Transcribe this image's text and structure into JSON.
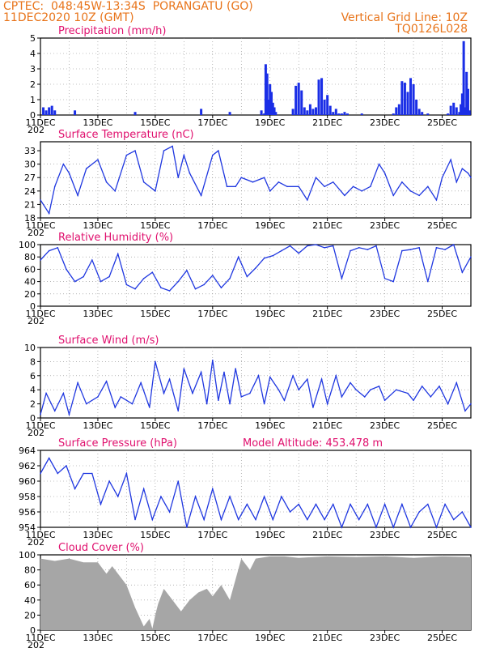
{
  "header": {
    "line1": "CPTEC:  048:45W-13:34S  PORANGATU (GO)",
    "line2": "11DEC2020 10Z (GMT)",
    "grid_note": "Vertical Grid Line: 10Z",
    "code": "TQ0126L028"
  },
  "xlabels": [
    "11DEC",
    "13DEC",
    "15DEC",
    "17DEC",
    "19DEC",
    "21DEC",
    "23DEC",
    "25DEC"
  ],
  "year_fragment": "202",
  "colors": {
    "title": "#e0106e",
    "header": "#e8741a",
    "series": "#1f37e0",
    "bars": "#1a2ee6",
    "cloud": "#a6a6a6"
  },
  "chart_data": [
    {
      "type": "bar",
      "title": "Precipitation (mm/h)",
      "ylim": [
        0,
        5
      ],
      "yticks": [
        0,
        1,
        2,
        3,
        4,
        5
      ],
      "x": [
        0.1,
        0.2,
        0.3,
        0.4,
        0.5,
        1.2,
        3.3,
        5.6,
        6.6,
        7.7,
        7.8,
        7.85,
        7.9,
        7.95,
        8.0,
        8.05,
        8.1,
        8.15,
        8.2,
        8.8,
        8.9,
        9.0,
        9.1,
        9.2,
        9.3,
        9.4,
        9.5,
        9.6,
        9.7,
        9.8,
        9.9,
        10.0,
        10.1,
        10.2,
        10.3,
        10.4,
        10.5,
        10.6,
        10.7,
        11.2,
        12.3,
        12.4,
        12.5,
        12.6,
        12.7,
        12.8,
        12.9,
        13.0,
        13.1,
        13.2,
        13.3,
        13.5,
        14.2,
        14.3,
        14.4,
        14.5,
        14.6,
        14.65,
        14.7,
        14.75,
        14.8,
        14.85,
        14.9,
        14.95
      ],
      "values": [
        0.5,
        0.3,
        0.5,
        0.6,
        0.3,
        0.3,
        0.2,
        0.4,
        0.2,
        0.3,
        0.1,
        3.3,
        2.7,
        1.0,
        2.0,
        1.5,
        0.8,
        0.5,
        0.2,
        0.4,
        1.9,
        2.1,
        1.6,
        0.5,
        0.3,
        0.7,
        0.4,
        0.5,
        2.3,
        2.4,
        1.0,
        1.3,
        0.6,
        0.2,
        0.4,
        0.1,
        0.1,
        0.2,
        0.1,
        0.1,
        0.1,
        0.5,
        0.7,
        2.2,
        2.1,
        1.5,
        2.4,
        2.0,
        1.0,
        0.4,
        0.2,
        0.1,
        0.1,
        0.6,
        0.8,
        0.5,
        0.2,
        0.7,
        1.4,
        4.8,
        0.5,
        2.8,
        1.7,
        0.3
      ]
    },
    {
      "type": "line",
      "title": "Surface Temperature (nC)",
      "ylim": [
        18,
        35
      ],
      "yticks": [
        18,
        21,
        24,
        27,
        30,
        33
      ],
      "x": [
        0,
        0.3,
        0.5,
        0.8,
        1.0,
        1.3,
        1.6,
        2.0,
        2.3,
        2.6,
        3.0,
        3.3,
        3.6,
        4.0,
        4.3,
        4.6,
        4.8,
        5.0,
        5.2,
        5.6,
        6.0,
        6.2,
        6.5,
        6.8,
        7.0,
        7.4,
        7.8,
        8.0,
        8.3,
        8.6,
        9.0,
        9.3,
        9.6,
        9.9,
        10.2,
        10.6,
        10.9,
        11.2,
        11.5,
        11.8,
        12.0,
        12.3,
        12.6,
        12.9,
        13.2,
        13.5,
        13.8,
        14.0,
        14.3,
        14.5,
        14.7,
        14.9,
        15.0
      ],
      "values": [
        22,
        19,
        25,
        30,
        28,
        23,
        29,
        31,
        26,
        24,
        32,
        33,
        26,
        24,
        33,
        34,
        27,
        32,
        28,
        23,
        32,
        33,
        25,
        25,
        27,
        26,
        27,
        24,
        26,
        25,
        25,
        22,
        27,
        25,
        26,
        23,
        25,
        24,
        25,
        30,
        28,
        23,
        26,
        24,
        23,
        25,
        22,
        27,
        31,
        26,
        29,
        28,
        27
      ]
    },
    {
      "type": "line",
      "title": "Relative Humidity (%)",
      "ylim": [
        0,
        100
      ],
      "yticks": [
        0,
        20,
        40,
        60,
        80,
        100
      ],
      "x": [
        0,
        0.3,
        0.6,
        0.9,
        1.2,
        1.5,
        1.8,
        2.1,
        2.4,
        2.7,
        3.0,
        3.3,
        3.6,
        3.9,
        4.2,
        4.5,
        4.8,
        5.1,
        5.4,
        5.7,
        6.0,
        6.3,
        6.6,
        6.9,
        7.2,
        7.5,
        7.8,
        8.1,
        8.4,
        8.7,
        9.0,
        9.3,
        9.6,
        9.9,
        10.2,
        10.5,
        10.8,
        11.1,
        11.4,
        11.7,
        12.0,
        12.3,
        12.6,
        12.9,
        13.2,
        13.5,
        13.8,
        14.1,
        14.4,
        14.7,
        15.0
      ],
      "values": [
        75,
        90,
        95,
        60,
        40,
        48,
        75,
        40,
        48,
        85,
        35,
        28,
        45,
        55,
        30,
        25,
        40,
        58,
        28,
        35,
        50,
        30,
        45,
        80,
        48,
        62,
        78,
        82,
        90,
        98,
        86,
        98,
        100,
        95,
        98,
        45,
        90,
        95,
        92,
        98,
        45,
        40,
        90,
        92,
        95,
        40,
        95,
        92,
        100,
        55,
        80
      ]
    },
    {
      "type": "line",
      "title": "Surface Wind (m/s)",
      "ylim": [
        0,
        10
      ],
      "yticks": [
        0,
        2,
        4,
        6,
        8,
        10
      ],
      "x": [
        0,
        0.2,
        0.5,
        0.8,
        1.0,
        1.3,
        1.6,
        2.0,
        2.3,
        2.6,
        2.8,
        3.2,
        3.5,
        3.8,
        4.0,
        4.3,
        4.5,
        4.8,
        5.0,
        5.3,
        5.6,
        5.8,
        6.0,
        6.2,
        6.4,
        6.6,
        6.8,
        7.0,
        7.3,
        7.6,
        7.8,
        8.0,
        8.3,
        8.5,
        8.8,
        9.0,
        9.3,
        9.5,
        9.8,
        10.0,
        10.3,
        10.5,
        10.8,
        11.0,
        11.3,
        11.5,
        11.8,
        12.0,
        12.4,
        12.8,
        13.0,
        13.3,
        13.6,
        13.9,
        14.2,
        14.5,
        14.8,
        15.0
      ],
      "values": [
        0.5,
        3.5,
        1.0,
        3.5,
        0.5,
        5.0,
        2.0,
        3.0,
        5.2,
        1.5,
        3.0,
        2.0,
        5.0,
        1.5,
        8.0,
        3.5,
        5.5,
        1.0,
        7.0,
        3.5,
        6.5,
        2.0,
        8.2,
        2.5,
        6.5,
        2.0,
        7.0,
        3.0,
        3.5,
        6.0,
        2.0,
        5.8,
        4.0,
        2.5,
        6.0,
        4.0,
        5.5,
        1.5,
        5.5,
        2.0,
        6.0,
        3.0,
        5.0,
        4.0,
        3.0,
        4.0,
        4.5,
        2.5,
        4.0,
        3.5,
        2.5,
        4.5,
        3.0,
        4.5,
        2.0,
        5.0,
        1.0,
        2.0
      ]
    },
    {
      "type": "line",
      "title": "Surface Pressure (hPa)",
      "annotation": "Model Altitude: 453.478  m",
      "ylim": [
        954,
        964
      ],
      "yticks": [
        954,
        956,
        958,
        960,
        962,
        964
      ],
      "x": [
        0,
        0.3,
        0.6,
        0.9,
        1.2,
        1.5,
        1.8,
        2.1,
        2.4,
        2.7,
        3.0,
        3.3,
        3.6,
        3.9,
        4.2,
        4.5,
        4.8,
        5.1,
        5.4,
        5.7,
        6.0,
        6.3,
        6.6,
        6.9,
        7.2,
        7.5,
        7.8,
        8.1,
        8.4,
        8.7,
        9.0,
        9.3,
        9.6,
        9.9,
        10.2,
        10.5,
        10.8,
        11.1,
        11.4,
        11.7,
        12.0,
        12.3,
        12.6,
        12.9,
        13.2,
        13.5,
        13.8,
        14.1,
        14.4,
        14.7,
        15.0
      ],
      "values": [
        961,
        963,
        961,
        962,
        959,
        961,
        961,
        957,
        960,
        958,
        961,
        955,
        959,
        955,
        958,
        956,
        960,
        954,
        958,
        955,
        959,
        955,
        958,
        955,
        957,
        955,
        958,
        955,
        958,
        956,
        957,
        955,
        957,
        955,
        957,
        954,
        957,
        955,
        957,
        954,
        957,
        954,
        957,
        954,
        956,
        957,
        954,
        957,
        955,
        956,
        954
      ]
    },
    {
      "type": "area",
      "title": "Cloud Cover (%)",
      "ylim": [
        0,
        100
      ],
      "yticks": [
        0,
        20,
        40,
        60,
        80,
        100
      ],
      "x": [
        0,
        0.5,
        1.0,
        1.5,
        2.0,
        2.3,
        2.5,
        2.8,
        3.0,
        3.3,
        3.6,
        3.8,
        3.9,
        4.0,
        4.1,
        4.3,
        4.6,
        4.9,
        5.2,
        5.5,
        5.8,
        6.0,
        6.3,
        6.6,
        7.0,
        7.3,
        7.5,
        8.0,
        8.5,
        9.0,
        10.0,
        11.0,
        12.0,
        13.0,
        14.0,
        15.0
      ],
      "values": [
        95,
        92,
        95,
        90,
        90,
        75,
        85,
        70,
        60,
        30,
        5,
        15,
        2,
        20,
        35,
        55,
        40,
        25,
        40,
        50,
        55,
        45,
        60,
        40,
        95,
        80,
        95,
        98,
        98,
        96,
        98,
        97,
        98,
        96,
        98,
        97
      ]
    }
  ]
}
